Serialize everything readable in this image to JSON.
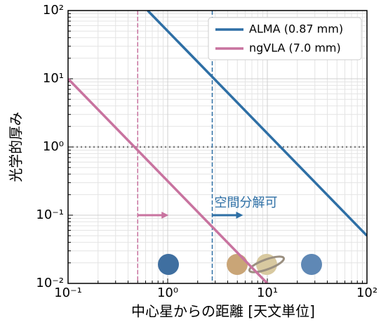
{
  "chart_data": {
    "type": "line",
    "xlabel": "中心星からの距離 [天文単位]",
    "ylabel": "光学的厚み",
    "log_x": true,
    "log_y": true,
    "grid": true,
    "minor_grid": true,
    "xlim": [
      0.1,
      100
    ],
    "ylim": [
      0.01,
      100
    ],
    "xticks": [
      {
        "value": 0.1,
        "label": "10⁻¹"
      },
      {
        "value": 1,
        "label": "10⁰"
      },
      {
        "value": 10,
        "label": "10¹"
      },
      {
        "value": 100,
        "label": "10²"
      }
    ],
    "yticks": [
      {
        "value": 0.01,
        "label": "10⁻²"
      },
      {
        "value": 0.1,
        "label": "10⁻¹"
      },
      {
        "value": 1,
        "label": "10⁰"
      },
      {
        "value": 10,
        "label": "10¹"
      },
      {
        "value": 100,
        "label": "10²"
      }
    ],
    "legend": "upper right",
    "series": [
      {
        "name": "ALMA (0.87 mm)",
        "color": "#2e6fa5",
        "x": [
          0.63,
          100
        ],
        "values": [
          100,
          0.05
        ]
      },
      {
        "name": "ngVLA (7.0 mm)",
        "color": "#c8739f",
        "x": [
          0.1,
          10
        ],
        "values": [
          10,
          0.01
        ]
      }
    ],
    "vlines": [
      {
        "x": 0.5,
        "color": "#c8739f"
      },
      {
        "x": 2.8,
        "color": "#2e6fa5"
      }
    ],
    "hline": {
      "y": 1,
      "color": "#808080"
    },
    "annotation": {
      "text": "空間分解可",
      "x": 2.8,
      "y": 0.15,
      "color": "#2e6fa5"
    }
  }
}
